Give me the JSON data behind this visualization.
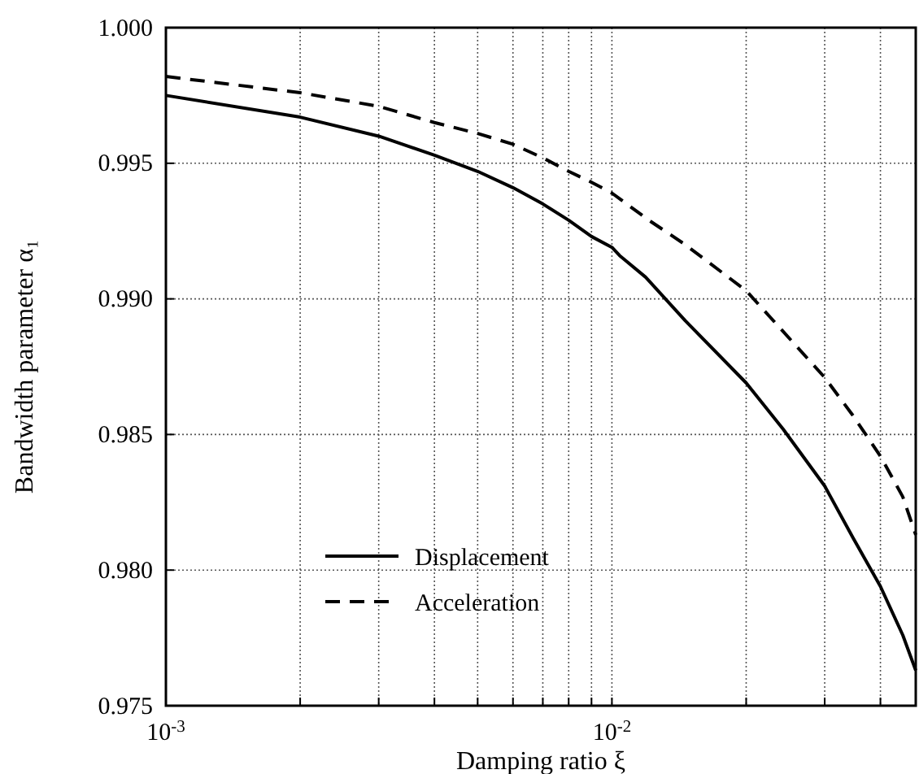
{
  "chart_data": {
    "type": "line",
    "xlabel": "Damping ratio ξ",
    "ylabel": "Bandwidth parameter α₁",
    "log": "x",
    "grid": true,
    "legend": "bottom left",
    "xlim": [
      0.001,
      0.048
    ],
    "ylim": [
      0.975,
      1.0
    ],
    "xticks": [
      {
        "value": 0.001,
        "label": "10$^{-3}$"
      },
      {
        "value": 0.002,
        "label": null
      },
      {
        "value": 0.003,
        "label": null
      },
      {
        "value": 0.004,
        "label": null
      },
      {
        "value": 0.005,
        "label": null
      },
      {
        "value": 0.006,
        "label": null
      },
      {
        "value": 0.007,
        "label": null
      },
      {
        "value": 0.008,
        "label": null
      },
      {
        "value": 0.009,
        "label": null
      },
      {
        "value": 0.01,
        "label": "10$^{-2}$"
      },
      {
        "value": 0.02,
        "label": null
      },
      {
        "value": 0.03,
        "label": null
      },
      {
        "value": 0.04,
        "label": null
      }
    ],
    "yticks": [
      {
        "value": 0.975,
        "label": "0.975"
      },
      {
        "value": 0.98,
        "label": "0.980"
      },
      {
        "value": 0.985,
        "label": "0.985"
      },
      {
        "value": 0.99,
        "label": "0.990"
      },
      {
        "value": 0.995,
        "label": "0.995"
      },
      {
        "value": 1.0,
        "label": "1.000"
      }
    ],
    "series": [
      {
        "name": "Displacement",
        "color": "#000000",
        "line_style": "solid",
        "x": [
          0.001,
          0.002,
          0.003,
          0.004,
          0.005,
          0.006,
          0.007,
          0.008,
          0.009,
          0.01,
          0.0104,
          0.0119,
          0.0146,
          0.02,
          0.0242,
          0.03,
          0.0347,
          0.04,
          0.0449,
          0.048
        ],
        "values": [
          0.9975,
          0.9967,
          0.996,
          0.9953,
          0.9947,
          0.9941,
          0.9935,
          0.9929,
          0.9923,
          0.9919,
          0.9916,
          0.9908,
          0.9892,
          0.9869,
          0.9852,
          0.9831,
          0.9812,
          0.9794,
          0.9776,
          0.9763
        ]
      },
      {
        "name": "Acceleration",
        "color": "#000000",
        "line_style": "dashed",
        "x": [
          0.001,
          0.002,
          0.003,
          0.004,
          0.005,
          0.006,
          0.007,
          0.008,
          0.009,
          0.01,
          0.0121,
          0.0146,
          0.02,
          0.0242,
          0.03,
          0.0347,
          0.04,
          0.0449,
          0.048
        ],
        "values": [
          0.9982,
          0.9976,
          0.9971,
          0.9965,
          0.9961,
          0.9957,
          0.9952,
          0.9947,
          0.9943,
          0.9939,
          0.9929,
          0.992,
          0.9903,
          0.9888,
          0.9871,
          0.9857,
          0.9842,
          0.9827,
          0.9813
        ]
      }
    ]
  }
}
